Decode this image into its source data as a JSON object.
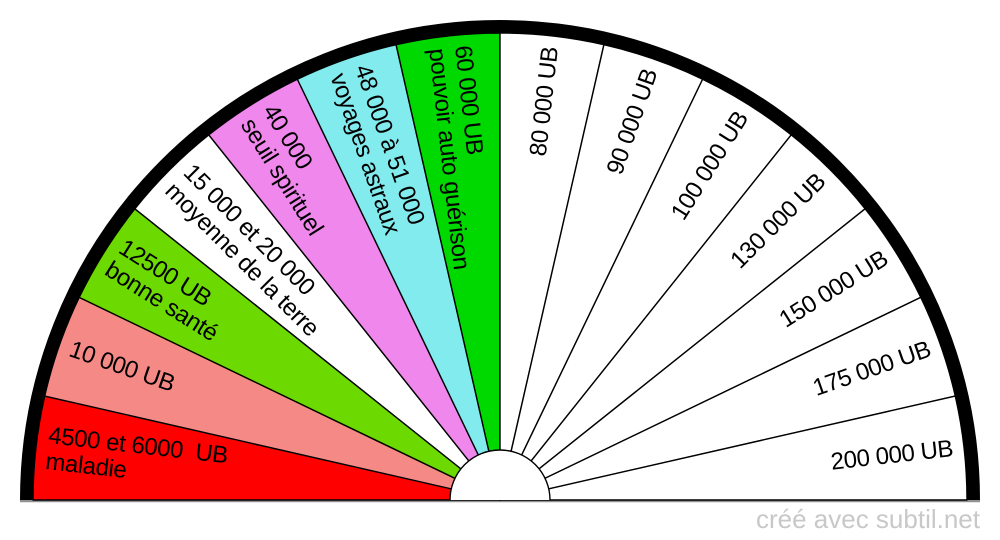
{
  "footer": {
    "credit": "créé avec subtil.net"
  },
  "chart_data": {
    "type": "pie",
    "variant": "semicircular-dowsing-dial",
    "title": "",
    "unit_label": "UB",
    "orientation": {
      "start_angle_deg": 180,
      "end_angle_deg": 0,
      "direction": "clockwise"
    },
    "sector_count": 14,
    "equal_sector_angle_deg": 12.857,
    "ring_color": "#000000",
    "line_color": "#000000",
    "baseline_color": "#919191",
    "text_color": "#000000",
    "hub_color": "#ffffff",
    "sectors": [
      {
        "value_ub": "4500-6000",
        "lines": [
          "4500 et 6000  UB",
          "maladie"
        ],
        "color": "#ff0000"
      },
      {
        "value_ub": "10000",
        "lines": [
          "10 000 UB"
        ],
        "color": "#f58985"
      },
      {
        "value_ub": "12500",
        "lines": [
          "12500 UB",
          "bonne santé"
        ],
        "color": "#6cd900"
      },
      {
        "value_ub": "15000-20000",
        "lines": [
          "15 000 et 20 000",
          "moyenne de la terre"
        ],
        "color": "#ffffff"
      },
      {
        "value_ub": "40000",
        "lines": [
          "40 000",
          "seuil spirituel"
        ],
        "color": "#f087ec"
      },
      {
        "value_ub": "48000-51000",
        "lines": [
          "48 000 à 51 000",
          "voyages astraux"
        ],
        "color": "#82ebee"
      },
      {
        "value_ub": "60000",
        "lines": [
          "60 000 UB",
          "pouvoir auto guérison"
        ],
        "color": "#00d900"
      },
      {
        "value_ub": "80000",
        "lines": [
          "80 000 UB"
        ],
        "color": "#ffffff"
      },
      {
        "value_ub": "90000",
        "lines": [
          "90 000 UB"
        ],
        "color": "#ffffff"
      },
      {
        "value_ub": "100000",
        "lines": [
          "100 000 UB"
        ],
        "color": "#ffffff"
      },
      {
        "value_ub": "130000",
        "lines": [
          "130 000 UB"
        ],
        "color": "#ffffff"
      },
      {
        "value_ub": "150000",
        "lines": [
          "150 000 UB"
        ],
        "color": "#ffffff"
      },
      {
        "value_ub": "175000",
        "lines": [
          "175 000 UB"
        ],
        "color": "#ffffff"
      },
      {
        "value_ub": "200000",
        "lines": [
          "200 000 UB"
        ],
        "color": "#ffffff"
      }
    ]
  }
}
